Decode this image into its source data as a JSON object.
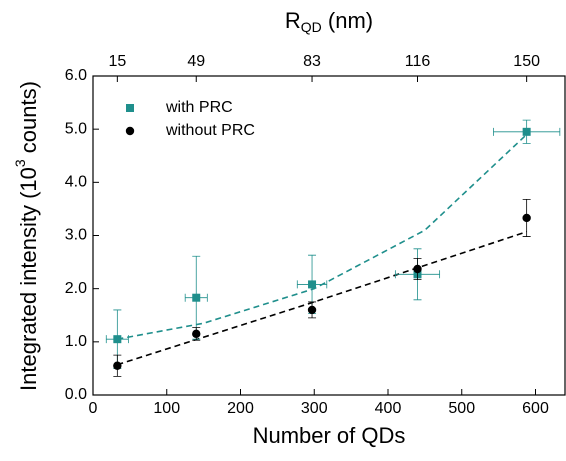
{
  "chart_data": {
    "type": "scatter",
    "xlabel": "Number of QDs",
    "ylabel_parts": [
      "Integrated intensity (10",
      "3",
      " counts)"
    ],
    "x2label_parts": [
      "R",
      "QD",
      " (nm)"
    ],
    "xlim": [
      0,
      640
    ],
    "ylim": [
      0,
      6
    ],
    "xticks": [
      0,
      100,
      200,
      300,
      400,
      500,
      600
    ],
    "yticks": [
      {
        "value": 0,
        "label": "0.0"
      },
      {
        "value": 1,
        "label": "1.0"
      },
      {
        "value": 2,
        "label": "2.0"
      },
      {
        "value": 3,
        "label": "3.0"
      },
      {
        "value": 4,
        "label": "4.0"
      },
      {
        "value": 5,
        "label": "5.0"
      },
      {
        "value": 6,
        "label": "6.0"
      }
    ],
    "x2ticks": [
      {
        "value": 33,
        "label": "15"
      },
      {
        "value": 140,
        "label": "49"
      },
      {
        "value": 297,
        "label": "83"
      },
      {
        "value": 440,
        "label": "116"
      },
      {
        "value": 588,
        "label": "150"
      }
    ],
    "legend": "upper left",
    "series": [
      {
        "name": "with PRC",
        "color": "#1f8f8c",
        "marker": "square",
        "x": [
          33,
          140,
          297,
          440,
          588
        ],
        "values": [
          1.05,
          1.83,
          2.08,
          2.27,
          4.95
        ],
        "yerr": [
          0.55,
          0.78,
          0.55,
          0.48,
          0.22
        ],
        "xerr": [
          15,
          15,
          20,
          30,
          45
        ]
      },
      {
        "name": "without PRC",
        "color": "#000000",
        "marker": "circle",
        "x": [
          33,
          140,
          297,
          440,
          588
        ],
        "values": [
          0.55,
          1.15,
          1.6,
          2.37,
          3.33
        ],
        "yerr": [
          0.2,
          0.12,
          0.15,
          0.2,
          0.35
        ]
      }
    ],
    "fits": [
      {
        "color": "#1f8f8c",
        "x": [
          33,
          150,
          300,
          450,
          588
        ],
        "values": [
          1.05,
          1.35,
          2.0,
          3.1,
          4.9
        ]
      },
      {
        "color": "#000000",
        "x": [
          33,
          300,
          588
        ],
        "values": [
          0.57,
          1.75,
          3.07
        ]
      }
    ]
  }
}
